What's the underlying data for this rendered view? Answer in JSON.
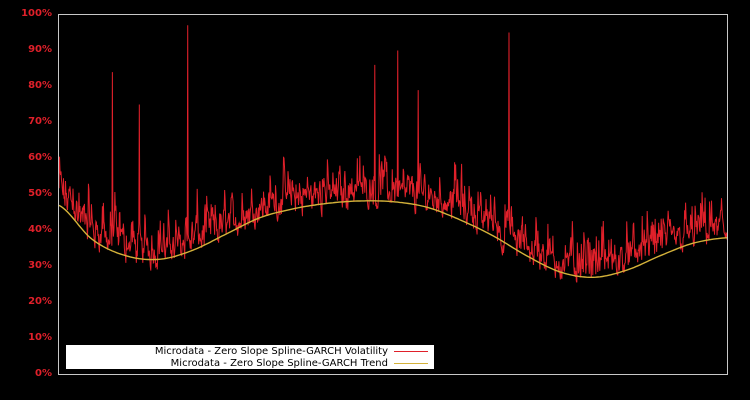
{
  "chart_data": {
    "type": "line",
    "title": "",
    "xlabel": "",
    "ylabel": "",
    "ylim": [
      0,
      100
    ],
    "y_ticks": [
      "0%",
      "10%",
      "20%",
      "30%",
      "40%",
      "50%",
      "60%",
      "70%",
      "80%",
      "90%",
      "100%"
    ],
    "x_ticks": [],
    "grid": false,
    "legend_position": "lower left",
    "series": [
      {
        "name": "Microdata - Zero Slope Spline-GARCH Volatility",
        "color": "#e0202a",
        "description": "Noisy daily volatility series; base roughly follows trend with frequent spikes",
        "notable_peaks": [
          {
            "x_frac": 0.08,
            "value": 84
          },
          {
            "x_frac": 0.12,
            "value": 75
          },
          {
            "x_frac": 0.193,
            "value": 97
          },
          {
            "x_frac": 0.473,
            "value": 86
          },
          {
            "x_frac": 0.507,
            "value": 90
          },
          {
            "x_frac": 0.538,
            "value": 79
          },
          {
            "x_frac": 0.674,
            "value": 95
          }
        ],
        "approx_range": [
          20,
          97
        ]
      },
      {
        "name": "Microdata - Zero Slope Spline-GARCH Trend",
        "color": "#d4b23a",
        "x_frac": [
          0.0,
          0.05,
          0.1,
          0.15,
          0.2,
          0.25,
          0.3,
          0.35,
          0.4,
          0.45,
          0.5,
          0.55,
          0.6,
          0.65,
          0.7,
          0.75,
          0.8,
          0.85,
          0.9,
          0.95,
          1.0
        ],
        "values": [
          47,
          37.5,
          33,
          32,
          34.5,
          39,
          43.5,
          46,
          47.5,
          48.2,
          48,
          46.5,
          43,
          38.5,
          33,
          28.5,
          27,
          29,
          33,
          36.5,
          38
        ]
      }
    ]
  },
  "legend": {
    "items": [
      {
        "label": "Microdata - Zero Slope Spline-GARCH Volatility",
        "color": "#e0202a"
      },
      {
        "label": "Microdata - Zero Slope Spline-GARCH Trend",
        "color": "#d4b23a"
      }
    ]
  },
  "axis": {
    "y_labels": [
      "100%",
      "90%",
      "80%",
      "70%",
      "60%",
      "50%",
      "40%",
      "30%",
      "20%",
      "10%",
      "0%"
    ]
  },
  "colors": {
    "background": "#000000",
    "frame": "#c8c8c8",
    "tick_label": "#e0202a"
  }
}
